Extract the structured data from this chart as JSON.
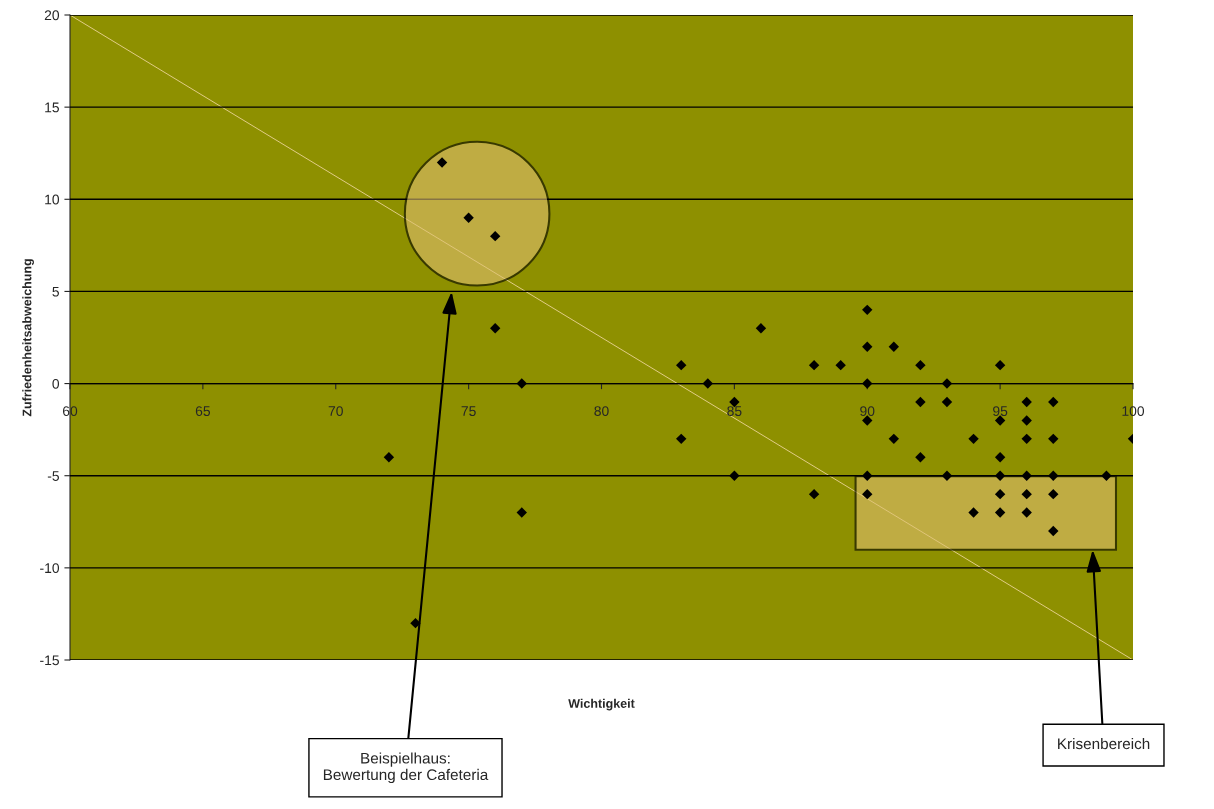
{
  "chart_data": {
    "type": "scatter",
    "xlabel": "Wichtigkeit",
    "ylabel": "Zufriedenheitsabweichung",
    "xlim": [
      60,
      100
    ],
    "xticks": [
      60,
      65,
      70,
      75,
      80,
      85,
      90,
      95,
      100
    ],
    "ylim": [
      -15,
      20
    ],
    "yticks": [
      -15,
      -10,
      -5,
      0,
      5,
      10,
      15,
      20
    ],
    "grid": "y",
    "marker": "diamond",
    "series": [
      {
        "color": "#000000",
        "x": [
          74,
          75,
          76,
          76,
          77,
          72,
          77,
          73,
          83,
          83,
          84,
          85,
          85,
          86,
          88,
          88,
          89,
          90,
          90,
          90,
          90,
          90,
          90,
          91,
          91,
          92,
          92,
          92,
          93,
          93,
          93,
          94,
          94,
          95,
          95,
          95,
          95,
          95,
          95,
          96,
          96,
          96,
          96,
          96,
          96,
          97,
          97,
          97,
          97,
          97,
          99,
          100
        ],
        "values": [
          12,
          9,
          8,
          3,
          0,
          -4,
          -7,
          -13,
          1,
          -3,
          0,
          -1,
          -5,
          3,
          1,
          -6,
          1,
          4,
          2,
          0,
          -2,
          -5,
          -6,
          2,
          -3,
          1,
          -1,
          -4,
          0,
          -1,
          -5,
          -3,
          -7,
          1,
          -2,
          -4,
          -5,
          -6,
          -7,
          -1,
          -2,
          -3,
          -5,
          -6,
          -7,
          -1,
          -3,
          -5,
          -6,
          -8,
          -5,
          -3
        ]
      },
      {
        "type": "line",
        "marker": "none",
        "color": "#f0d8a0",
        "x": [
          60,
          100
        ],
        "values": [
          20,
          -15
        ]
      }
    ],
    "annotations": [
      "Beispielhaus:\nBewertung der Cafeteria",
      "Krisenbereich"
    ]
  }
}
